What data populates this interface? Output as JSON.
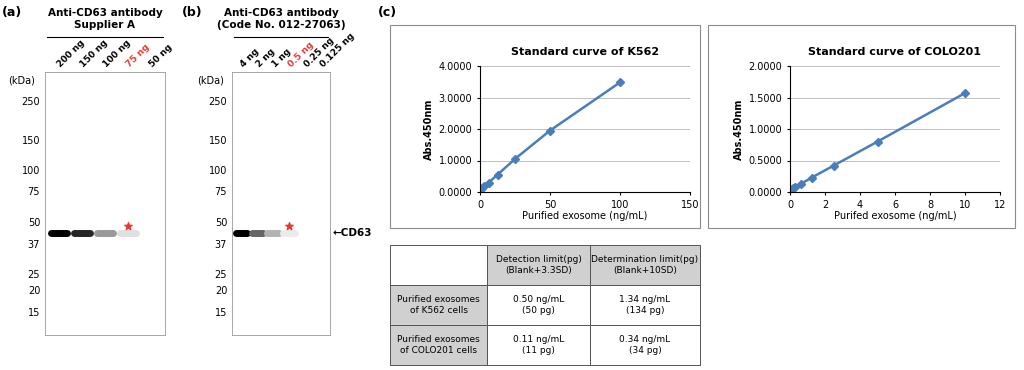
{
  "panel_labels": [
    "(a)",
    "(b)",
    "(c)"
  ],
  "blots": [
    {
      "title": "Anti-CD63 antibody\nSupplier A",
      "axis_label": "(kDa)",
      "kda_ticks": [
        250,
        150,
        100,
        75,
        50,
        37,
        25,
        20,
        15
      ],
      "ylim": [
        11,
        370
      ],
      "lanes": [
        "200 ng",
        "150 ng",
        "100 ng",
        "75 ng",
        "50 ng"
      ],
      "band_intensity": [
        1.0,
        0.85,
        0.4,
        0.12,
        0.0
      ],
      "band_kda": 43,
      "highlight": {
        "lane": "75 ng",
        "color": "#e8382f",
        "star_kda": 47
      }
    },
    {
      "title": "Anti-CD63 antibody\n(Code No. 012-27063)",
      "axis_label": "(kDa)",
      "kda_ticks": [
        250,
        150,
        100,
        75,
        50,
        37,
        25,
        20,
        15
      ],
      "ylim": [
        11,
        370
      ],
      "lanes": [
        "4 ng",
        "2 ng",
        "1 ng",
        "0.5 ng",
        "0.25 ng",
        "0.125 ng"
      ],
      "band_intensity": [
        1.0,
        0.6,
        0.3,
        0.08,
        0.0,
        0.0
      ],
      "band_kda": 43,
      "band_label": "←CD63",
      "highlight": {
        "lane": "0.5 ng",
        "color": "#e8382f",
        "star_kda": 47
      }
    }
  ],
  "chart_data": [
    {
      "type": "line",
      "title": "Standard curve of K562",
      "x_label": "Purified exosome (ng/mL)",
      "y_label": "Abs.450nm",
      "x": [
        0,
        0.78,
        1.56,
        3.125,
        6.25,
        12.5,
        25,
        50,
        100
      ],
      "values": [
        0.05,
        0.08,
        0.12,
        0.18,
        0.3,
        0.55,
        1.05,
        1.95,
        3.48
      ],
      "color": "#4a7ebb",
      "marker": "diamond",
      "line_style": "solid",
      "xlim": [
        0,
        150
      ],
      "xticks": [
        0,
        50,
        100,
        150
      ],
      "ylim": [
        0,
        4
      ],
      "yticks": [
        {
          "value": 0,
          "label": "0.0000"
        },
        {
          "value": 1,
          "label": "1.0000"
        },
        {
          "value": 2,
          "label": "2.0000"
        },
        {
          "value": 3,
          "label": "3.0000"
        },
        {
          "value": 4,
          "label": "4.0000"
        }
      ],
      "grid": true
    },
    {
      "type": "line",
      "title": "Standard curve of COLO201",
      "x_label": "Purifed exosome (ng/mL)",
      "y_label": "Abs.450nm",
      "x": [
        0,
        0.156,
        0.3125,
        0.625,
        1.25,
        2.5,
        5,
        10
      ],
      "values": [
        0.04,
        0.06,
        0.08,
        0.13,
        0.23,
        0.42,
        0.8,
        1.57
      ],
      "color": "#4a7ebb",
      "marker": "diamond",
      "line_style": "solid",
      "xlim": [
        0,
        12
      ],
      "xticks": [
        0,
        2,
        4,
        6,
        8,
        10,
        12
      ],
      "ylim": [
        0,
        2
      ],
      "yticks": [
        {
          "value": 0,
          "label": "0.0000"
        },
        {
          "value": 0.5,
          "label": "0.5000"
        },
        {
          "value": 1,
          "label": "1.0000"
        },
        {
          "value": 1.5,
          "label": "1.5000"
        },
        {
          "value": 2,
          "label": "2.0000"
        }
      ],
      "grid": true
    }
  ],
  "table": {
    "header": [
      null,
      "Detection limit(pg)\n(Blank+3.3SD)",
      "Determination limit(pg)\n(Blank+10SD)"
    ],
    "rows": [
      [
        "Purified exosomes\nof K562 cells",
        "0.50 ng/mL\n(50 pg)",
        "1.34 ng/mL\n(134 pg)"
      ],
      [
        "Purified exosomes\nof COLO201 cells",
        "0.11 ng/mL\n(11 pg)",
        "0.34 ng/mL\n(34 pg)"
      ]
    ]
  }
}
